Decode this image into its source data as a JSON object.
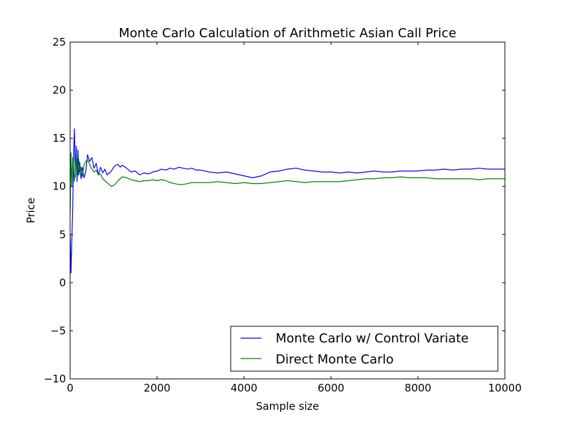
{
  "chart_data": {
    "type": "line",
    "title": "Monte Carlo Calculation of Arithmetic Asian Call Price",
    "xlabel": "Sample size",
    "ylabel": "Price",
    "xlim": [
      0,
      10000
    ],
    "ylim": [
      -10,
      25
    ],
    "xticks": [
      0,
      2000,
      4000,
      6000,
      8000,
      10000
    ],
    "xtick_labels": [
      "0",
      "2000",
      "4000",
      "6000",
      "8000",
      "10000"
    ],
    "yticks": [
      -10,
      -5,
      0,
      5,
      10,
      15,
      20,
      25
    ],
    "ytick_labels": [
      "−10",
      "−5",
      "0",
      "5",
      "10",
      "15",
      "20",
      "25"
    ],
    "grid": false,
    "legend_position": "lower-right",
    "series": [
      {
        "name": "Monte Carlo w/ Control Variate",
        "color": "#0000ff",
        "x": [
          1,
          20,
          40,
          60,
          80,
          100,
          120,
          140,
          160,
          180,
          200,
          220,
          250,
          280,
          320,
          360,
          400,
          450,
          500,
          550,
          600,
          650,
          700,
          750,
          800,
          850,
          900,
          950,
          1000,
          1050,
          1100,
          1150,
          1200,
          1300,
          1400,
          1500,
          1600,
          1700,
          1800,
          1900,
          2000,
          2100,
          2200,
          2300,
          2400,
          2500,
          2600,
          2700,
          2800,
          2900,
          3000,
          3200,
          3400,
          3600,
          3800,
          4000,
          4100,
          4200,
          4300,
          4400,
          4500,
          4600,
          4800,
          5000,
          5200,
          5400,
          5600,
          5800,
          6000,
          6200,
          6400,
          6600,
          6800,
          7000,
          7200,
          7400,
          7600,
          7800,
          8000,
          8200,
          8400,
          8600,
          8800,
          9000,
          9200,
          9400,
          9600,
          9800,
          10000
        ],
        "y": [
          5.0,
          1.0,
          4.5,
          7.8,
          13.5,
          16.0,
          11.0,
          14.2,
          10.5,
          13.8,
          11.2,
          12.5,
          10.8,
          12.0,
          10.9,
          11.5,
          13.3,
          12.6,
          13.0,
          11.9,
          12.4,
          11.2,
          12.0,
          11.4,
          11.8,
          11.2,
          11.4,
          11.6,
          12.0,
          12.2,
          12.3,
          12.0,
          12.2,
          11.9,
          11.5,
          11.6,
          11.2,
          11.4,
          11.3,
          11.5,
          11.6,
          11.8,
          11.7,
          11.9,
          11.8,
          12.0,
          11.9,
          11.8,
          11.9,
          11.7,
          11.7,
          11.5,
          11.4,
          11.5,
          11.3,
          11.1,
          11.0,
          10.9,
          11.0,
          11.1,
          11.3,
          11.5,
          11.6,
          11.8,
          11.9,
          11.7,
          11.6,
          11.5,
          11.5,
          11.4,
          11.5,
          11.4,
          11.5,
          11.6,
          11.5,
          11.5,
          11.6,
          11.6,
          11.6,
          11.7,
          11.7,
          11.8,
          11.7,
          11.8,
          11.8,
          11.9,
          11.8,
          11.8,
          11.8
        ]
      },
      {
        "name": "Direct Monte Carlo",
        "color": "#008000",
        "x": [
          1,
          20,
          40,
          60,
          80,
          100,
          120,
          140,
          160,
          180,
          200,
          220,
          250,
          280,
          320,
          360,
          400,
          450,
          500,
          550,
          600,
          650,
          700,
          750,
          800,
          850,
          900,
          950,
          1000,
          1050,
          1100,
          1150,
          1200,
          1300,
          1400,
          1500,
          1600,
          1700,
          1800,
          1900,
          2000,
          2100,
          2200,
          2300,
          2400,
          2500,
          2600,
          2700,
          2800,
          2900,
          3000,
          3200,
          3400,
          3600,
          3800,
          4000,
          4200,
          4400,
          4600,
          4800,
          5000,
          5200,
          5400,
          5600,
          5800,
          6000,
          6200,
          6400,
          6600,
          6800,
          7000,
          7200,
          7400,
          7600,
          7800,
          8000,
          8200,
          8400,
          8600,
          8800,
          9000,
          9200,
          9400,
          9600,
          9800,
          10000
        ],
        "y": [
          7.0,
          13.5,
          10.0,
          13.0,
          12.0,
          10.5,
          11.5,
          13.5,
          12.0,
          11.2,
          12.8,
          11.5,
          12.0,
          11.0,
          12.2,
          12.6,
          12.8,
          12.3,
          11.8,
          11.5,
          11.7,
          11.2,
          11.3,
          10.8,
          10.6,
          10.4,
          10.2,
          10.0,
          10.1,
          10.3,
          10.6,
          10.8,
          11.0,
          10.9,
          10.7,
          10.6,
          10.5,
          10.6,
          10.6,
          10.7,
          10.6,
          10.7,
          10.6,
          10.4,
          10.3,
          10.2,
          10.2,
          10.3,
          10.4,
          10.4,
          10.4,
          10.4,
          10.5,
          10.4,
          10.3,
          10.4,
          10.3,
          10.3,
          10.4,
          10.5,
          10.6,
          10.5,
          10.4,
          10.5,
          10.5,
          10.5,
          10.5,
          10.6,
          10.7,
          10.8,
          10.8,
          10.9,
          10.9,
          11.0,
          10.9,
          10.9,
          10.9,
          10.8,
          10.8,
          10.8,
          10.8,
          10.8,
          10.7,
          10.8,
          10.8,
          10.8
        ]
      }
    ]
  }
}
